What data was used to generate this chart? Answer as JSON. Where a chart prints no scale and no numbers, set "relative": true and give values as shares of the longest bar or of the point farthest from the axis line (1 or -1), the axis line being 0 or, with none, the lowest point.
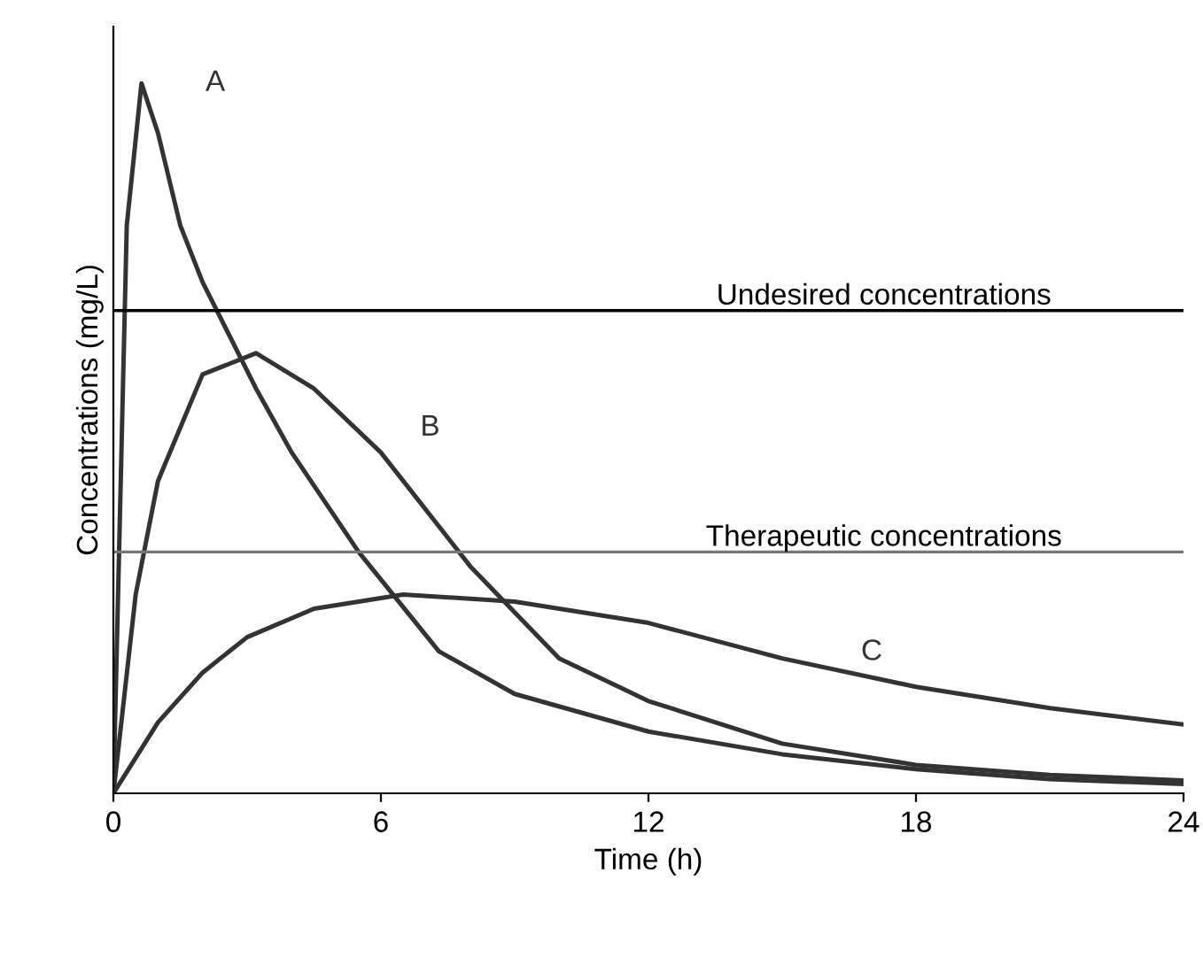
{
  "chart_data": {
    "type": "line",
    "relative": true,
    "xlabel": "Time (h)",
    "ylabel": "Concentrations (mg/L)",
    "xlim": [
      0,
      24
    ],
    "xticks": [
      0,
      6,
      12,
      18,
      24
    ],
    "grid": false,
    "legend": false,
    "marker": "none",
    "line_style": "solid",
    "series": [
      {
        "name": "A",
        "color": "#333333",
        "x": [
          0,
          0.3,
          0.63,
          1,
          1.5,
          2,
          3.2,
          4,
          5.5,
          7.3,
          9,
          12,
          15,
          18,
          21,
          24
        ],
        "values": [
          0,
          0.8,
          1,
          0.93,
          0.8,
          0.72,
          0.57,
          0.48,
          0.34,
          0.2,
          0.14,
          0.087,
          0.055,
          0.034,
          0.02,
          0.013
        ]
      },
      {
        "name": "B",
        "color": "#333333",
        "x": [
          0,
          0.5,
          1,
          2,
          3.2,
          4.5,
          6,
          8,
          10,
          12,
          15,
          18,
          21,
          24
        ],
        "values": [
          0,
          0.28,
          0.44,
          0.59,
          0.62,
          0.57,
          0.48,
          0.32,
          0.19,
          0.13,
          0.07,
          0.04,
          0.026,
          0.018
        ]
      },
      {
        "name": "C",
        "color": "#333333",
        "x": [
          0,
          1,
          2,
          3,
          4.5,
          6.5,
          9,
          12,
          15,
          18,
          21,
          24
        ],
        "values": [
          0,
          0.1,
          0.17,
          0.22,
          0.26,
          0.28,
          0.27,
          0.24,
          0.19,
          0.15,
          0.12,
          0.097
        ]
      }
    ],
    "ref_lines": [
      {
        "axis": "y",
        "value": 0.68,
        "label": "Undesired concentrations",
        "color": "#000000"
      },
      {
        "axis": "y",
        "value": 0.34,
        "label": "Therapeutic concentrations",
        "color": "#777777"
      }
    ]
  }
}
